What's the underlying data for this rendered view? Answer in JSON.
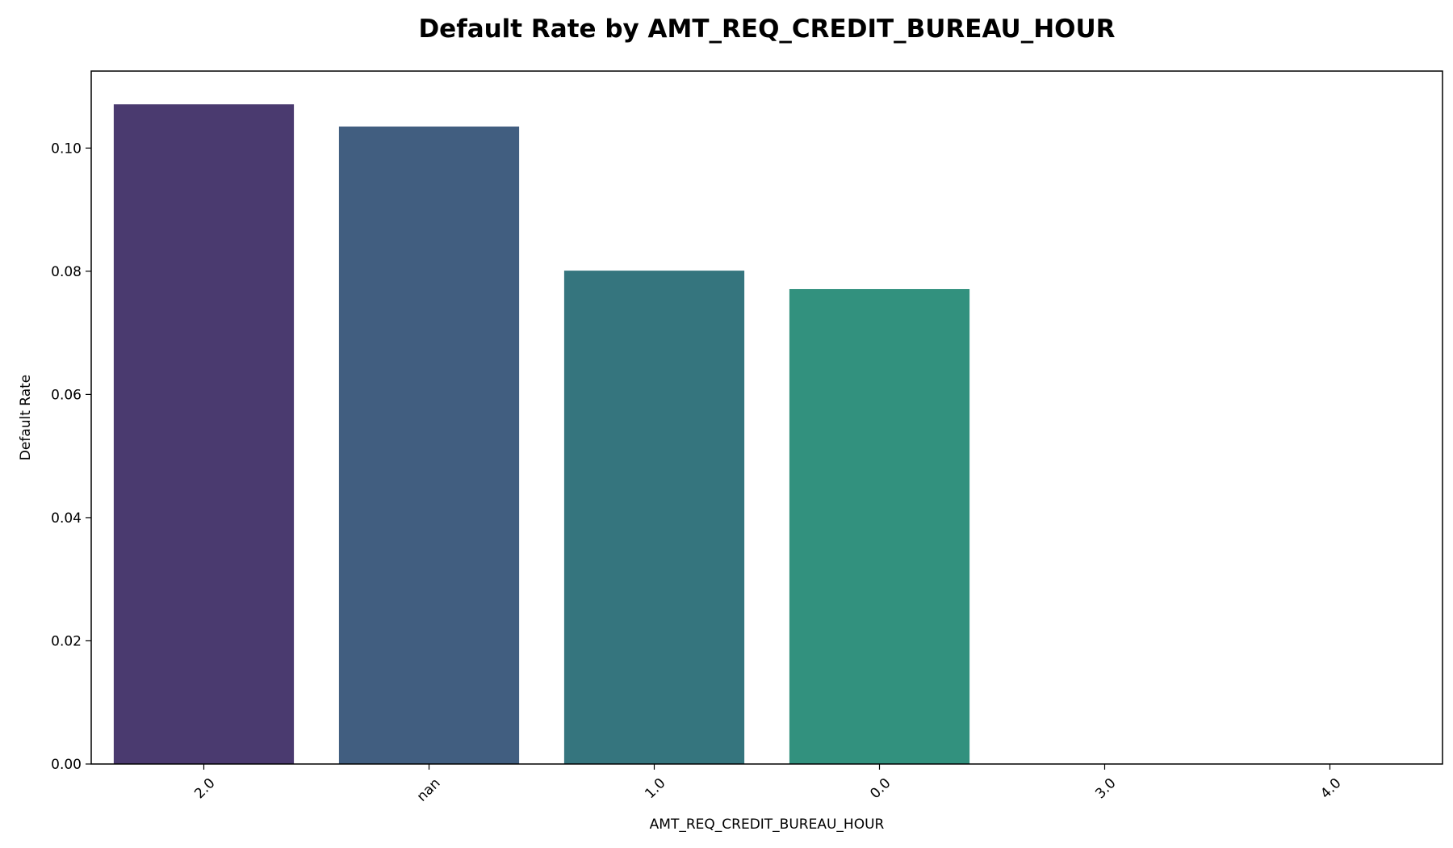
{
  "chart_data": {
    "type": "bar",
    "title": "Default Rate by AMT_REQ_CREDIT_BUREAU_HOUR",
    "xlabel": "AMT_REQ_CREDIT_BUREAU_HOUR",
    "ylabel": "Default Rate",
    "categories": [
      "2.0",
      "nan",
      "1.0",
      "0.0",
      "3.0",
      "4.0"
    ],
    "values": [
      0.1071,
      0.1035,
      0.0801,
      0.0771,
      0.0,
      0.0
    ],
    "colors": [
      "#4a3a6f",
      "#415e80",
      "#35757e",
      "#32917e",
      "#2fa87a",
      "#4fbd6f"
    ],
    "ylim": [
      0,
      0.1125
    ],
    "yticks": [
      "0.00",
      "0.02",
      "0.04",
      "0.06",
      "0.08",
      "0.10"
    ],
    "ytick_values": [
      0,
      0.02,
      0.04,
      0.06,
      0.08,
      0.1
    ],
    "xtick_rotation": 45,
    "grid": false,
    "legend": "none"
  }
}
